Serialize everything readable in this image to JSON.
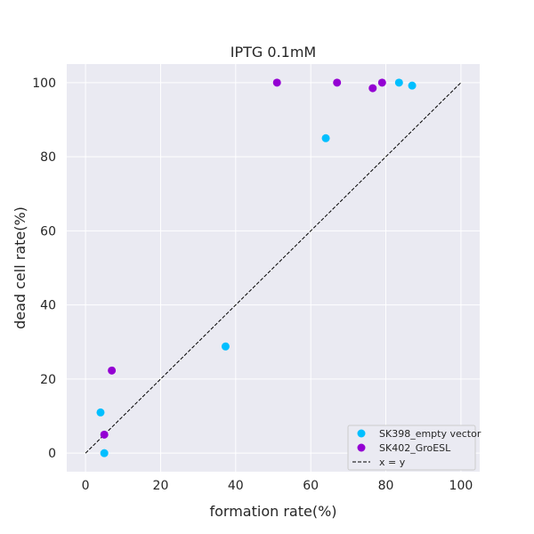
{
  "chart_data": {
    "type": "scatter",
    "title": "IPTG 0.1mM",
    "xlabel": "formation rate(%)",
    "ylabel": "dead cell rate(%)",
    "xlim": [
      -5,
      105
    ],
    "ylim": [
      -5,
      105
    ],
    "xticks": [
      0,
      20,
      40,
      60,
      80,
      100
    ],
    "yticks": [
      0,
      20,
      40,
      60,
      80,
      100
    ],
    "grid": true,
    "legend_position": "lower-right",
    "series": [
      {
        "name": "SK398_empty vector",
        "color": "#00BFFF",
        "marker": "circle",
        "points": [
          {
            "x": 4,
            "y": 11
          },
          {
            "x": 5,
            "y": 0
          },
          {
            "x": 37.3,
            "y": 28.8
          },
          {
            "x": 64,
            "y": 85
          },
          {
            "x": 83.5,
            "y": 100
          },
          {
            "x": 87,
            "y": 99.2
          }
        ]
      },
      {
        "name": "SK402_GroESL",
        "color": "#9400D3",
        "marker": "circle",
        "points": [
          {
            "x": 5,
            "y": 5
          },
          {
            "x": 7,
            "y": 22.3
          },
          {
            "x": 51,
            "y": 100
          },
          {
            "x": 67,
            "y": 100
          },
          {
            "x": 76.5,
            "y": 98.5
          },
          {
            "x": 79,
            "y": 100
          }
        ]
      }
    ],
    "reference_line": {
      "name": "x = y",
      "color": "#000000",
      "style": "dashed",
      "from": [
        0,
        0
      ],
      "to": [
        100,
        100
      ]
    }
  }
}
